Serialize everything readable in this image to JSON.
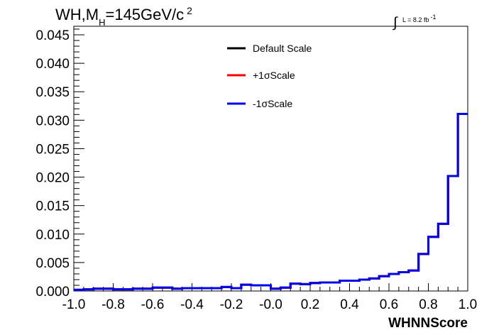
{
  "title": {
    "prefix": "WH,M",
    "subscript": "H",
    "value": "=145GeV/c",
    "superscript": "2"
  },
  "luminosity": {
    "integral": "∫",
    "text": "L = 8.2 fb",
    "superscript": "-1"
  },
  "chart_data": {
    "type": "line",
    "style": "step-histogram",
    "xlabel": "WHNNScore",
    "ylabel": "",
    "xlim": [
      -1.0,
      1.0
    ],
    "ylim": [
      0.0,
      0.0465
    ],
    "x_ticks": [
      "-1.0",
      "-0.8",
      "-0.6",
      "-0.4",
      "-0.2",
      "-0.0",
      "0.2",
      "0.4",
      "0.6",
      "0.8",
      "1.0"
    ],
    "y_ticks": [
      "0.000",
      "0.005",
      "0.010",
      "0.015",
      "0.020",
      "0.025",
      "0.030",
      "0.035",
      "0.040",
      "0.045"
    ],
    "bin_edges": [
      -1.0,
      -0.95,
      -0.9,
      -0.85,
      -0.8,
      -0.75,
      -0.7,
      -0.65,
      -0.6,
      -0.55,
      -0.5,
      -0.45,
      -0.4,
      -0.35,
      -0.3,
      -0.25,
      -0.2,
      -0.15,
      -0.1,
      -0.05,
      0.0,
      0.05,
      0.1,
      0.15,
      0.2,
      0.25,
      0.3,
      0.35,
      0.4,
      0.45,
      0.5,
      0.55,
      0.6,
      0.65,
      0.7,
      0.75,
      0.8,
      0.85,
      0.9,
      0.95,
      1.0
    ],
    "legend_placement": "top-center",
    "series": [
      {
        "name": "Default Scale",
        "color": "#000000",
        "values": [
          0.0002,
          0.0003,
          0.0004,
          0.0004,
          0.0003,
          0.0003,
          0.0004,
          0.0004,
          0.0006,
          0.0006,
          0.0004,
          0.0005,
          0.0005,
          0.0005,
          0.0005,
          0.0007,
          0.0005,
          0.0011,
          0.001,
          0.001,
          0.0004,
          0.0006,
          0.0013,
          0.0012,
          0.0014,
          0.0015,
          0.0015,
          0.0018,
          0.0018,
          0.002,
          0.0022,
          0.0026,
          0.003,
          0.0033,
          0.0036,
          0.0065,
          0.0095,
          0.0118,
          0.0202,
          0.0311
        ]
      },
      {
        "name": "+1σScale",
        "color": "#ff0000",
        "values": [
          0.0002,
          0.0003,
          0.0004,
          0.0004,
          0.0003,
          0.0003,
          0.0004,
          0.0004,
          0.0006,
          0.0006,
          0.0004,
          0.0005,
          0.0005,
          0.0005,
          0.0005,
          0.0007,
          0.0005,
          0.0011,
          0.001,
          0.001,
          0.0004,
          0.0006,
          0.0013,
          0.0012,
          0.0014,
          0.0015,
          0.0015,
          0.0018,
          0.0018,
          0.002,
          0.0022,
          0.0026,
          0.003,
          0.0033,
          0.0036,
          0.0065,
          0.0095,
          0.0118,
          0.0202,
          0.0311
        ]
      },
      {
        "name": "-1σScale",
        "color": "#0000ee",
        "values": [
          0.0002,
          0.0003,
          0.0004,
          0.0004,
          0.0003,
          0.0003,
          0.0004,
          0.0004,
          0.0006,
          0.0006,
          0.0004,
          0.0005,
          0.0005,
          0.0005,
          0.0005,
          0.0007,
          0.0005,
          0.0011,
          0.001,
          0.001,
          0.0004,
          0.0006,
          0.0013,
          0.0012,
          0.0014,
          0.0015,
          0.0015,
          0.0018,
          0.0018,
          0.002,
          0.0022,
          0.0026,
          0.003,
          0.0033,
          0.0036,
          0.0065,
          0.0095,
          0.0118,
          0.0202,
          0.0311
        ]
      }
    ]
  }
}
